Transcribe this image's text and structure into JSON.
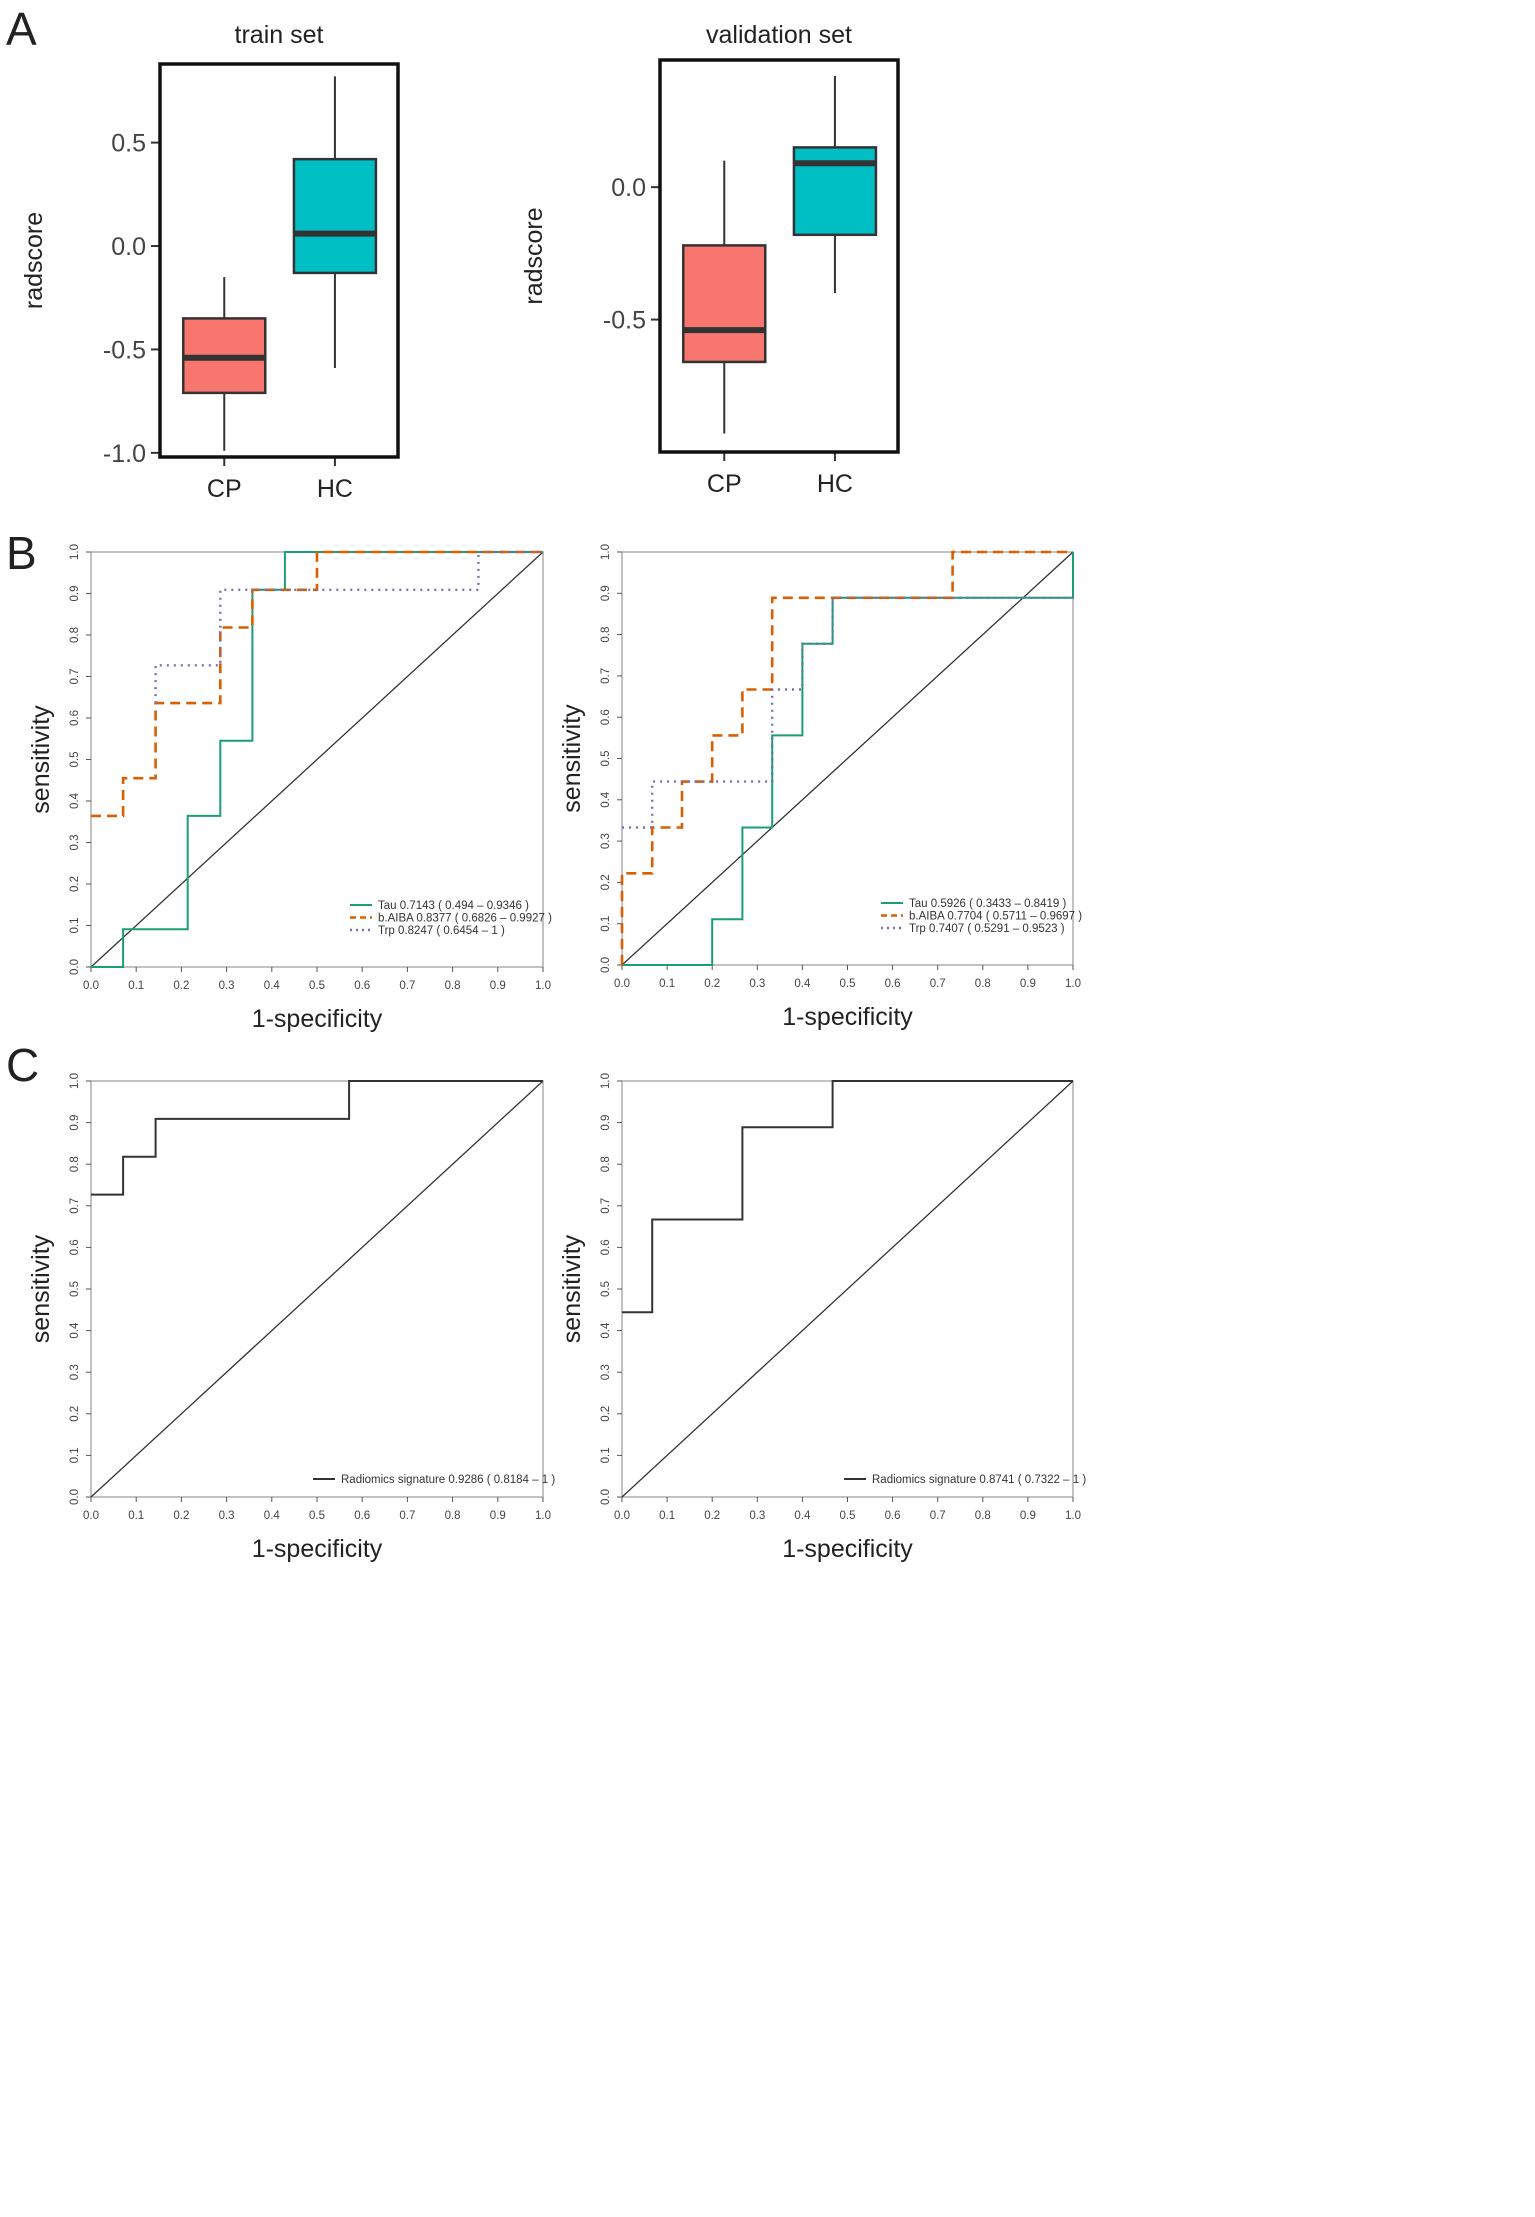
{
  "panel_letters": [
    "A",
    "B",
    "C"
  ],
  "colors": {
    "cp_fill": "#f8766d",
    "hc_fill": "#00bfc4",
    "tau": "#1b9e77",
    "baiba": "#d95f02",
    "trp": "#7570b3",
    "line": "#222222",
    "signature": "#333333"
  },
  "chart_data": [
    {
      "id": "box-train",
      "type": "box",
      "title": "train set",
      "ylabel": "radscore",
      "ylim": [
        -1.02,
        0.88
      ],
      "yticks": [
        -1.0,
        -0.5,
        0.0,
        0.5
      ],
      "ytick_labels": [
        "-1.0",
        "-0.5",
        "0.0",
        "0.5"
      ],
      "categories": [
        "CP",
        "HC"
      ],
      "boxes": [
        {
          "name": "CP",
          "min": -0.99,
          "q1": -0.71,
          "median": -0.54,
          "q3": -0.35,
          "max": -0.15
        },
        {
          "name": "HC",
          "min": -0.59,
          "q1": -0.13,
          "median": 0.06,
          "q3": 0.42,
          "max": 0.82
        }
      ]
    },
    {
      "id": "box-valid",
      "type": "box",
      "title": "validation set",
      "ylabel": "radscore",
      "ylim": [
        -1.0,
        0.48
      ],
      "yticks": [
        -0.5,
        0.0
      ],
      "ytick_labels": [
        "-0.5",
        "0.0"
      ],
      "categories": [
        "CP",
        "HC"
      ],
      "boxes": [
        {
          "name": "CP",
          "min": -0.93,
          "q1": -0.66,
          "median": -0.54,
          "q3": -0.22,
          "max": 0.1
        },
        {
          "name": "HC",
          "min": -0.4,
          "q1": -0.18,
          "median": 0.09,
          "q3": 0.15,
          "max": 0.42
        }
      ]
    },
    {
      "id": "roc-b-train",
      "type": "line",
      "xlabel": "1-specificity",
      "ylabel": "sensitivity",
      "xlim": [
        0,
        1
      ],
      "ylim": [
        0,
        1
      ],
      "ticks": [
        "0.0",
        "0.1",
        "0.2",
        "0.3",
        "0.4",
        "0.5",
        "0.6",
        "0.7",
        "0.8",
        "0.9",
        "1.0"
      ],
      "legend_position": "bottom-right",
      "series": [
        {
          "name": "Tau",
          "legend": "Tau 0.7143 ( 0.494 – 0.9346 )",
          "style": "solid",
          "color_key": "tau",
          "points": [
            [
              0,
              0
            ],
            [
              0.071,
              0
            ],
            [
              0.071,
              0.091
            ],
            [
              0.214,
              0.091
            ],
            [
              0.214,
              0.364
            ],
            [
              0.286,
              0.364
            ],
            [
              0.286,
              0.545
            ],
            [
              0.357,
              0.545
            ],
            [
              0.357,
              0.909
            ],
            [
              0.429,
              0.909
            ],
            [
              0.429,
              1
            ],
            [
              1,
              1
            ]
          ]
        },
        {
          "name": "b.AIBA",
          "legend": "b.AIBA 0.8377 ( 0.6826 – 0.9927 )",
          "style": "dashed",
          "color_key": "baiba",
          "points": [
            [
              0,
              0.364
            ],
            [
              0.071,
              0.364
            ],
            [
              0.071,
              0.455
            ],
            [
              0.143,
              0.455
            ],
            [
              0.143,
              0.636
            ],
            [
              0.286,
              0.636
            ],
            [
              0.286,
              0.818
            ],
            [
              0.357,
              0.818
            ],
            [
              0.357,
              0.909
            ],
            [
              0.5,
              0.909
            ],
            [
              0.5,
              1
            ],
            [
              1,
              1
            ]
          ]
        },
        {
          "name": "Trp",
          "legend": "Trp 0.8247 ( 0.6454 – 1 )",
          "style": "dotted",
          "color_key": "trp",
          "points": [
            [
              0.143,
              0.636
            ],
            [
              0.143,
              0.727
            ],
            [
              0.286,
              0.727
            ],
            [
              0.286,
              0.909
            ],
            [
              0.857,
              0.909
            ],
            [
              0.857,
              1
            ],
            [
              1,
              1
            ]
          ]
        }
      ]
    },
    {
      "id": "roc-b-valid",
      "type": "line",
      "xlabel": "1-specificity",
      "ylabel": "sensitivity",
      "xlim": [
        0,
        1
      ],
      "ylim": [
        0,
        1
      ],
      "ticks": [
        "0.0",
        "0.1",
        "0.2",
        "0.3",
        "0.4",
        "0.5",
        "0.6",
        "0.7",
        "0.8",
        "0.9",
        "1.0"
      ],
      "legend_position": "bottom-right",
      "series": [
        {
          "name": "Tau",
          "legend": "Tau 0.5926 ( 0.3433 – 0.8419 )",
          "style": "solid",
          "color_key": "tau",
          "points": [
            [
              0,
              0
            ],
            [
              0.2,
              0
            ],
            [
              0.2,
              0.111
            ],
            [
              0.267,
              0.111
            ],
            [
              0.267,
              0.333
            ],
            [
              0.333,
              0.333
            ],
            [
              0.333,
              0.556
            ],
            [
              0.4,
              0.556
            ],
            [
              0.4,
              0.778
            ],
            [
              0.467,
              0.778
            ],
            [
              0.467,
              0.889
            ],
            [
              1,
              0.889
            ],
            [
              1,
              1
            ]
          ]
        },
        {
          "name": "b.AIBA",
          "legend": "b.AIBA 0.7704 ( 0.5711 – 0.9697 )",
          "style": "dashed",
          "color_key": "baiba",
          "points": [
            [
              0,
              0
            ],
            [
              0,
              0.222
            ],
            [
              0.067,
              0.222
            ],
            [
              0.067,
              0.333
            ],
            [
              0.133,
              0.333
            ],
            [
              0.133,
              0.444
            ],
            [
              0.2,
              0.444
            ],
            [
              0.2,
              0.556
            ],
            [
              0.267,
              0.556
            ],
            [
              0.267,
              0.667
            ],
            [
              0.333,
              0.667
            ],
            [
              0.333,
              0.889
            ],
            [
              0.733,
              0.889
            ],
            [
              0.733,
              1
            ],
            [
              1,
              1
            ]
          ]
        },
        {
          "name": "Trp",
          "legend": "Trp 0.7407 ( 0.5291 – 0.9523 )",
          "style": "dotted",
          "color_key": "trp",
          "points": [
            [
              0,
              0.333
            ],
            [
              0.067,
              0.333
            ],
            [
              0.067,
              0.444
            ],
            [
              0.333,
              0.444
            ],
            [
              0.333,
              0.667
            ],
            [
              0.4,
              0.667
            ],
            [
              0.4,
              0.778
            ],
            [
              0.467,
              0.778
            ],
            [
              0.467,
              0.889
            ],
            [
              1,
              0.889
            ]
          ]
        }
      ]
    },
    {
      "id": "roc-c-train",
      "type": "line",
      "xlabel": "1-specificity",
      "ylabel": "sensitivity",
      "xlim": [
        0,
        1
      ],
      "ylim": [
        0,
        1
      ],
      "ticks": [
        "0.0",
        "0.1",
        "0.2",
        "0.3",
        "0.4",
        "0.5",
        "0.6",
        "0.7",
        "0.8",
        "0.9",
        "1.0"
      ],
      "legend_position": "bottom-right",
      "series": [
        {
          "name": "Radiomics signature",
          "legend": "Radiomics signature 0.9286 ( 0.8184 – 1 )",
          "style": "solid",
          "color_key": "signature",
          "points": [
            [
              0,
              0.727
            ],
            [
              0.071,
              0.727
            ],
            [
              0.071,
              0.818
            ],
            [
              0.143,
              0.818
            ],
            [
              0.143,
              0.909
            ],
            [
              0.571,
              0.909
            ],
            [
              0.571,
              1
            ],
            [
              1,
              1
            ]
          ]
        }
      ]
    },
    {
      "id": "roc-c-valid",
      "type": "line",
      "xlabel": "1-specificity",
      "ylabel": "sensitivity",
      "xlim": [
        0,
        1
      ],
      "ylim": [
        0,
        1
      ],
      "ticks": [
        "0.0",
        "0.1",
        "0.2",
        "0.3",
        "0.4",
        "0.5",
        "0.6",
        "0.7",
        "0.8",
        "0.9",
        "1.0"
      ],
      "legend_position": "bottom-right",
      "series": [
        {
          "name": "Radiomics signature",
          "legend": "Radiomics signature 0.8741 ( 0.7322 – 1 )",
          "style": "solid",
          "color_key": "signature",
          "points": [
            [
              0,
              0.444
            ],
            [
              0.067,
              0.444
            ],
            [
              0.067,
              0.667
            ],
            [
              0.267,
              0.667
            ],
            [
              0.267,
              0.889
            ],
            [
              0.467,
              0.889
            ],
            [
              0.467,
              1
            ],
            [
              1,
              1
            ]
          ]
        }
      ]
    }
  ]
}
